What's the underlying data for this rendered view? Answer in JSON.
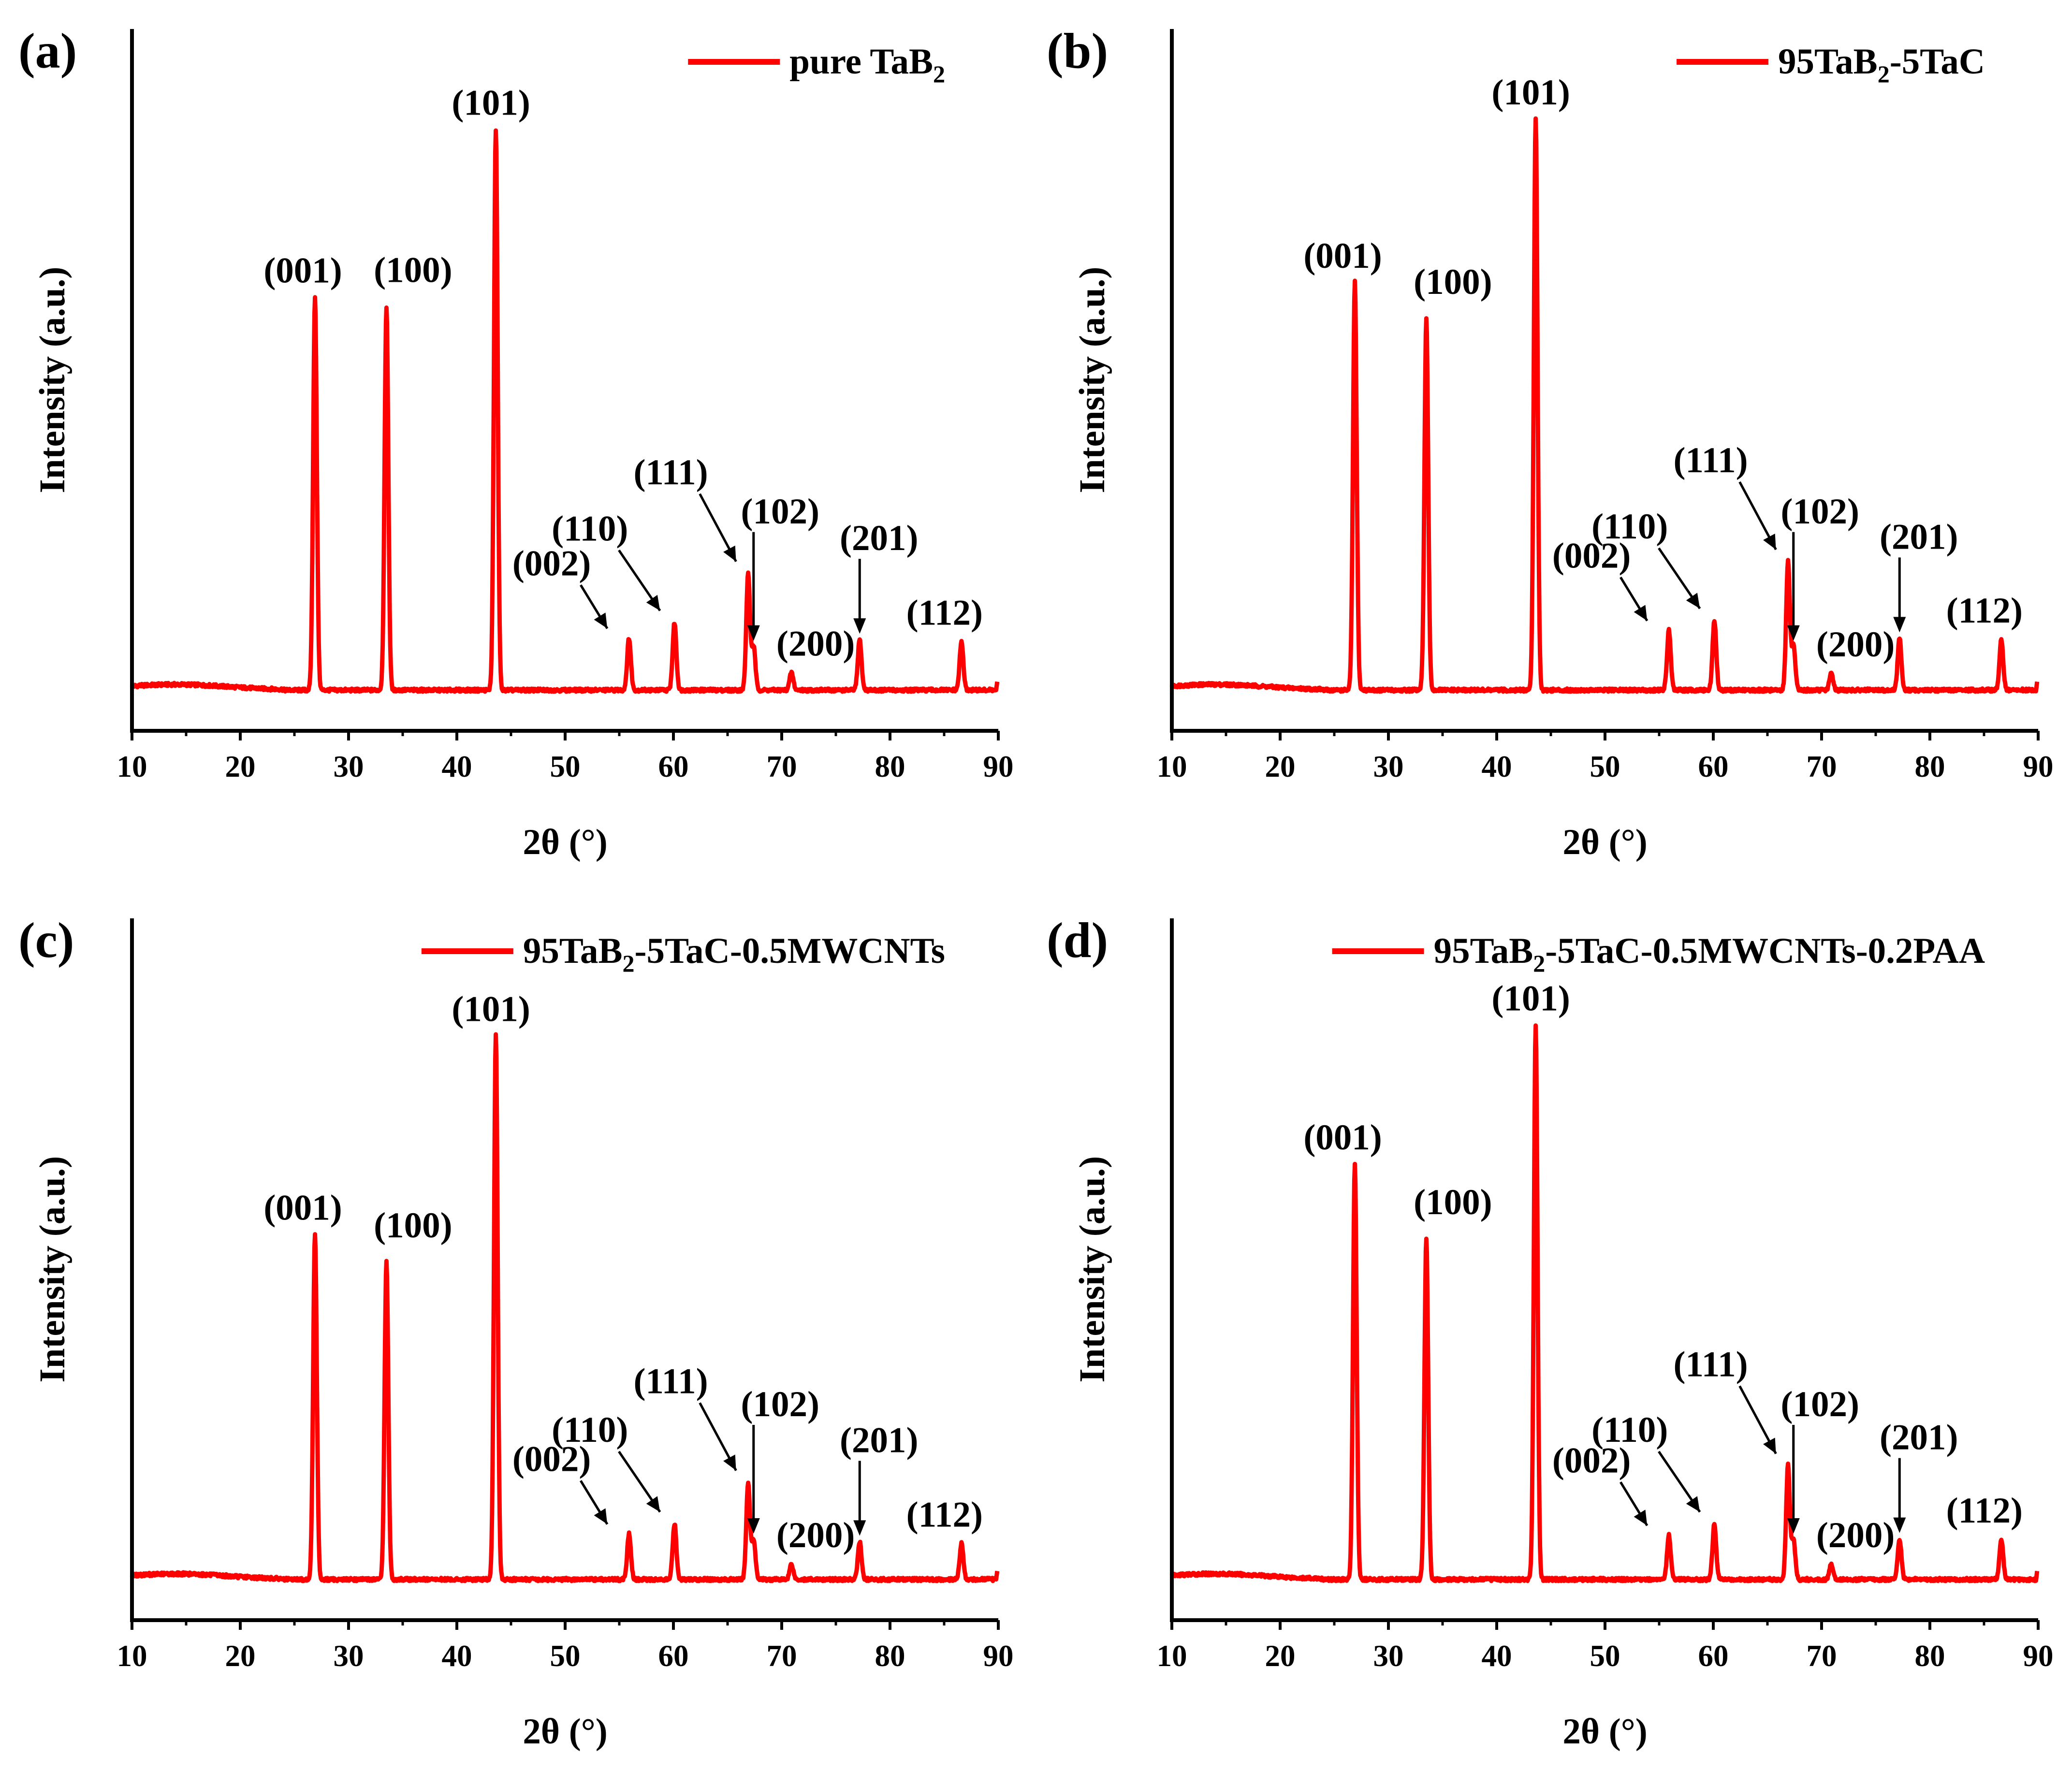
{
  "colors": {
    "series": "#ff0000",
    "axis": "#000000",
    "text": "#000000",
    "background": "#ffffff"
  },
  "chart_data": [
    {
      "type": "line",
      "panel": "(a)",
      "legend": {
        "main": "pure TaB",
        "sub": "2",
        "tail": ""
      },
      "xlabel": "2θ (°)",
      "ylabel": "Intensity (a.u.)",
      "xlim": [
        10,
        90
      ],
      "ylim": [
        0,
        100
      ],
      "xticks": [
        "10",
        "20",
        "30",
        "40",
        "50",
        "60",
        "70",
        "80",
        "90"
      ],
      "baseline": 5.8,
      "peaks": [
        {
          "x": 26.9,
          "y": 61.8,
          "label": "(001)"
        },
        {
          "x": 33.5,
          "y": 60.5,
          "label": "(100)"
        },
        {
          "x": 43.6,
          "y": 85.7,
          "label": "(101)"
        },
        {
          "x": 55.9,
          "y": 13.2,
          "label": "(002)"
        },
        {
          "x": 60.1,
          "y": 15.4,
          "label": "(110)"
        },
        {
          "x": 66.9,
          "y": 22.4,
          "label": "(111)"
        },
        {
          "x": 67.4,
          "y": 12.0,
          "label": "(102)"
        },
        {
          "x": 70.9,
          "y": 8.3,
          "label": "(200)"
        },
        {
          "x": 77.2,
          "y": 13.0,
          "label": "(201)"
        },
        {
          "x": 86.6,
          "y": 12.7,
          "label": "(112)"
        }
      ]
    },
    {
      "type": "line",
      "panel": "(b)",
      "legend": {
        "main": "95TaB",
        "sub": "2",
        "tail": "-5TaC"
      },
      "xlabel": "2θ (°)",
      "ylabel": "Intensity (a.u.)",
      "xlim": [
        10,
        90
      ],
      "ylim": [
        0,
        100
      ],
      "xticks": [
        "10",
        "20",
        "30",
        "40",
        "50",
        "60",
        "70",
        "80",
        "90"
      ],
      "baseline": 5.8,
      "peaks": [
        {
          "x": 26.9,
          "y": 63.9,
          "label": "(001)"
        },
        {
          "x": 33.5,
          "y": 58.8,
          "label": "(100)"
        },
        {
          "x": 43.6,
          "y": 87.2,
          "label": "(101)"
        },
        {
          "x": 55.9,
          "y": 14.3,
          "label": "(002)"
        },
        {
          "x": 60.1,
          "y": 15.7,
          "label": "(110)"
        },
        {
          "x": 66.9,
          "y": 24.1,
          "label": "(111)"
        },
        {
          "x": 67.4,
          "y": 12.0,
          "label": "(102)"
        },
        {
          "x": 70.9,
          "y": 8.2,
          "label": "(200)"
        },
        {
          "x": 77.2,
          "y": 13.2,
          "label": "(201)"
        },
        {
          "x": 86.6,
          "y": 13.0,
          "label": "(112)"
        }
      ]
    },
    {
      "type": "line",
      "panel": "(c)",
      "legend": {
        "main": "95TaB",
        "sub": "2",
        "tail": "-5TaC-0.5MWCNTs"
      },
      "xlabel": "2θ (°)",
      "ylabel": "Intensity (a.u.)",
      "xlim": [
        10,
        90
      ],
      "ylim": [
        0,
        100
      ],
      "xticks": [
        "10",
        "20",
        "30",
        "40",
        "50",
        "60",
        "70",
        "80",
        "90"
      ],
      "baseline": 5.8,
      "peaks": [
        {
          "x": 26.9,
          "y": 55.0,
          "label": "(001)"
        },
        {
          "x": 33.5,
          "y": 51.1,
          "label": "(100)"
        },
        {
          "x": 43.6,
          "y": 83.3,
          "label": "(101)"
        },
        {
          "x": 55.9,
          "y": 12.3,
          "label": "(002)"
        },
        {
          "x": 60.1,
          "y": 13.7,
          "label": "(110)"
        },
        {
          "x": 66.9,
          "y": 19.6,
          "label": "(111)"
        },
        {
          "x": 67.4,
          "y": 11.5,
          "label": "(102)"
        },
        {
          "x": 70.9,
          "y": 8.0,
          "label": "(200)"
        },
        {
          "x": 77.2,
          "y": 11.2,
          "label": "(201)"
        },
        {
          "x": 86.6,
          "y": 10.9,
          "label": "(112)"
        }
      ]
    },
    {
      "type": "line",
      "panel": "(d)",
      "legend": {
        "main": "95TaB",
        "sub": "2",
        "tail": "-5TaC-0.5MWCNTs-0.2PAA"
      },
      "xlabel": "2θ (°)",
      "ylabel": "Intensity (a.u.)",
      "xlim": [
        10,
        90
      ],
      "ylim": [
        0,
        100
      ],
      "xticks": [
        "10",
        "20",
        "30",
        "40",
        "50",
        "60",
        "70",
        "80",
        "90"
      ],
      "baseline": 5.8,
      "peaks": [
        {
          "x": 26.9,
          "y": 65.0,
          "label": "(001)"
        },
        {
          "x": 33.5,
          "y": 54.4,
          "label": "(100)"
        },
        {
          "x": 43.6,
          "y": 84.8,
          "label": "(101)"
        },
        {
          "x": 55.9,
          "y": 12.1,
          "label": "(002)"
        },
        {
          "x": 60.1,
          "y": 13.7,
          "label": "(110)"
        },
        {
          "x": 66.9,
          "y": 22.0,
          "label": "(111)"
        },
        {
          "x": 67.4,
          "y": 11.5,
          "label": "(102)"
        },
        {
          "x": 70.9,
          "y": 8.0,
          "label": "(200)"
        },
        {
          "x": 77.2,
          "y": 11.6,
          "label": "(201)"
        },
        {
          "x": 86.6,
          "y": 11.5,
          "label": "(112)"
        }
      ]
    }
  ]
}
